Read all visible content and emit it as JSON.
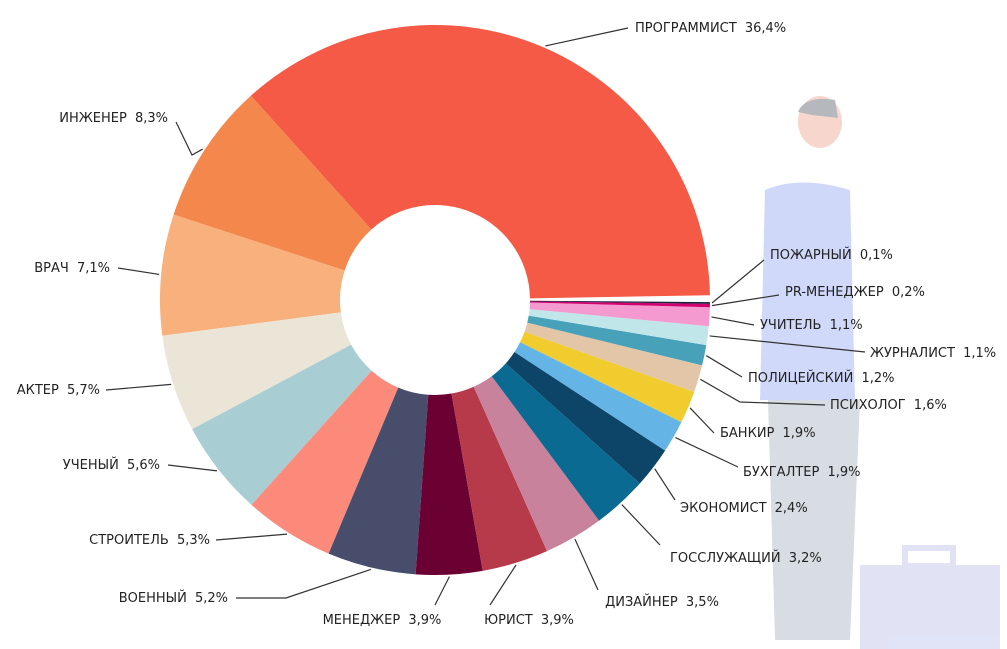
{
  "chart_data": {
    "type": "donut",
    "categories": [
      "ПРОГРАММИСТ",
      "ИНЖЕНЕР",
      "ВРАЧ",
      "АКТЕР",
      "УЧЕНЫЙ",
      "СТРОИТЕЛЬ",
      "ВОЕННЫЙ",
      "МЕНЕДЖЕР",
      "ЮРИСТ",
      "ДИЗАЙНЕР",
      "ГОССЛУЖАЩИЙ",
      "ЭКОНОМИСТ",
      "БУХГАЛТЕР",
      "БАНКИР",
      "ПСИХОЛОГ",
      "ПОЛИЦЕЙСКИЙ",
      "ЖУРНАЛИСТ",
      "УЧИТЕЛЬ",
      "PR-МЕНЕДЖЕР",
      "ПОЖАРНЫЙ"
    ],
    "values": [
      36.4,
      8.3,
      7.1,
      5.7,
      5.6,
      5.3,
      5.2,
      3.9,
      3.9,
      3.5,
      3.2,
      2.4,
      1.9,
      1.9,
      1.6,
      1.2,
      1.1,
      1.1,
      0.2,
      0.1
    ],
    "value_labels": [
      "36,4%",
      "8,3%",
      "7,1%",
      "5,7%",
      "5,6%",
      "5,3%",
      "5,2%",
      "3,9%",
      "3,9%",
      "3,5%",
      "3,2%",
      "2,4%",
      "1,9%",
      "1,9%",
      "1,6%",
      "1,2%",
      "1,1%",
      "1,1%",
      "0,2%",
      "0,1%"
    ],
    "colors": [
      "#f45a45",
      "#f4874b",
      "#f8b07c",
      "#ebe5d8",
      "#a8ced4",
      "#fb8a7a",
      "#474d6b",
      "#6b0033",
      "#b73a4b",
      "#c9829b",
      "#0b6a92",
      "#0c4567",
      "#64b5e6",
      "#f1cc2f",
      "#e3c6a8",
      "#47a1b9",
      "#c0e6e9",
      "#f49ad0",
      "#d1006e",
      "#1b2040"
    ]
  }
}
